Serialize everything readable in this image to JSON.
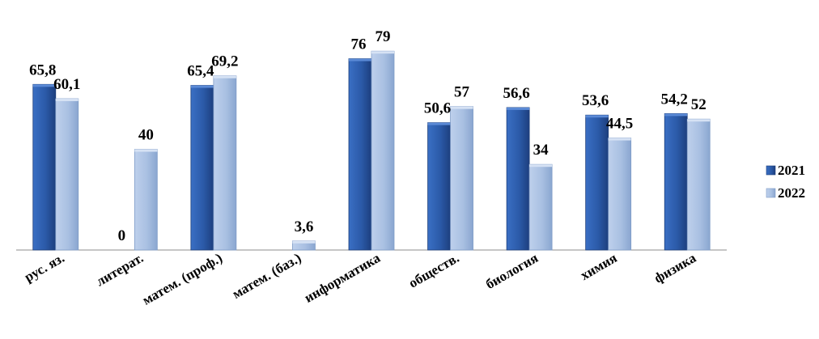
{
  "chart_data": {
    "type": "bar",
    "title": "",
    "categories": [
      "рус. яз.",
      "литерат.",
      "матем. (проф.)",
      "матем. (баз.)",
      "информатика",
      "обществ.",
      "биология",
      "химия",
      "физика"
    ],
    "series": [
      {
        "name": "2021",
        "values": [
          65.8,
          0,
          65.4,
          null,
          76,
          50.6,
          56.6,
          53.6,
          54.2
        ],
        "labels": [
          "65,8",
          "0",
          "65,4",
          "",
          "76",
          "50,6",
          "56,6",
          "53,6",
          "54,2"
        ],
        "color": "#2e5aa8"
      },
      {
        "name": "2022",
        "values": [
          60.1,
          40,
          69.2,
          3.6,
          79,
          57,
          34,
          44.5,
          52
        ],
        "labels": [
          "60,1",
          "40",
          "69,2",
          "3,6",
          "79",
          "57",
          "34",
          "44,5",
          "52"
        ],
        "color": "#a9c0e2"
      }
    ],
    "ylim": [
      0,
      90
    ],
    "grid": false,
    "legend_position": "right"
  }
}
